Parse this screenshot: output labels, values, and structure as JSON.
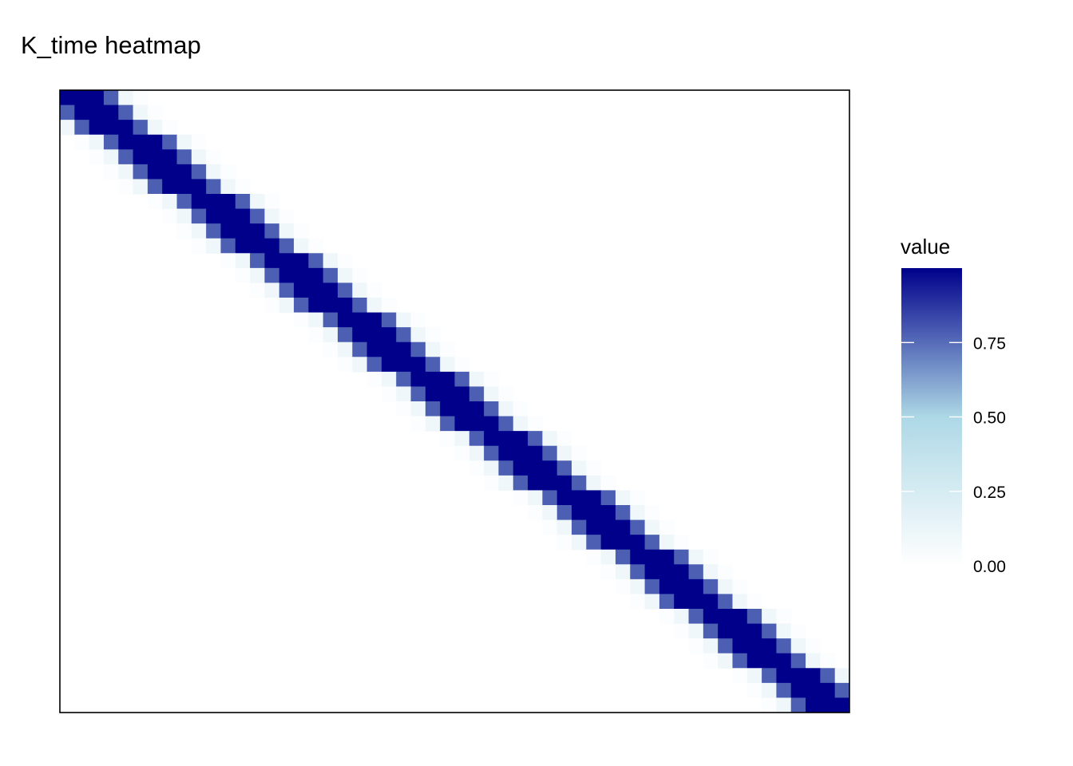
{
  "chart_data": {
    "type": "heatmap",
    "title": "K_time heatmap",
    "xlabel": "",
    "ylabel": "",
    "grid": false,
    "axes": "hidden",
    "n_rows": 42,
    "n_cols": 54,
    "band_profile": {
      "offset_values": [
        {
          "offset": -4,
          "value": 0.02
        },
        {
          "offset": -3,
          "value": 0.1
        },
        {
          "offset": -2,
          "value": 0.78
        },
        {
          "offset": -1,
          "value": 1.0
        },
        {
          "offset": 0,
          "value": 1.0
        },
        {
          "offset": 1,
          "value": 1.0
        },
        {
          "offset": 2,
          "value": 0.78
        },
        {
          "offset": 3,
          "value": 0.1
        },
        {
          "offset": 4,
          "value": 0.02
        }
      ],
      "background_value": 0
    },
    "legend": {
      "title": "value",
      "position": "right",
      "range": [
        0,
        1
      ],
      "ticks": [
        0,
        0.25,
        0.5,
        0.75
      ],
      "tick_labels": [
        "0.00",
        "0.25",
        "0.50",
        "0.75"
      ],
      "colors": [
        {
          "value": 0,
          "color": "#ffffff"
        },
        {
          "value": 0.5,
          "color": "#add8e6"
        },
        {
          "value": 1,
          "color": "#00008b"
        }
      ]
    }
  }
}
